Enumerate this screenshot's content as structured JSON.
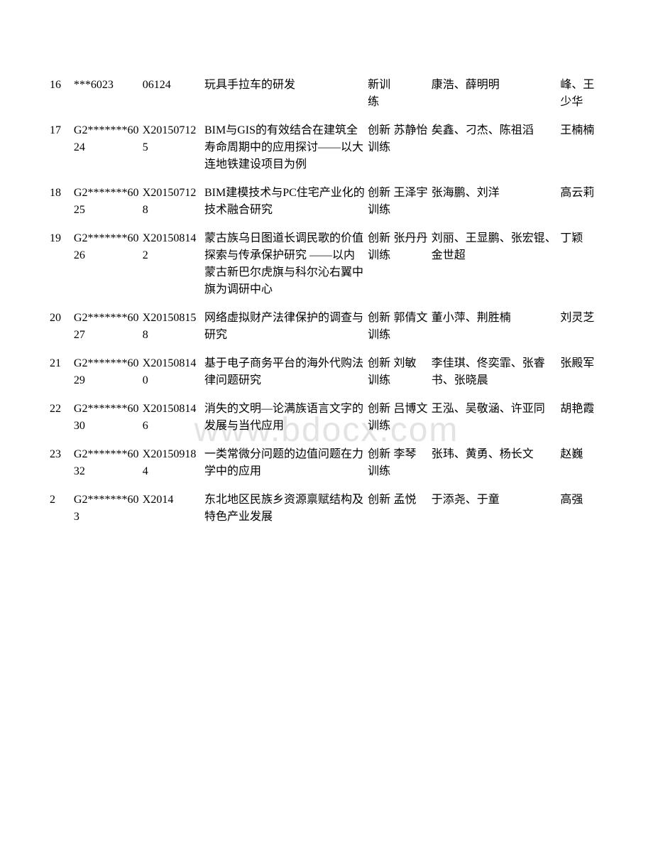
{
  "watermark": "www.bdocx.com",
  "rows": [
    {
      "seq": "16",
      "code1": "***6023",
      "code2": "06124",
      "title": "玩具手拉车的研发",
      "type": "新训练",
      "leader": "",
      "members": "康浩、薛明明",
      "advisor": "峰、王少华"
    },
    {
      "seq": "17",
      "code1": "G2*******6024",
      "code2": "X201507125",
      "title": "BIM与GIS的有效结合在建筑全寿命周期中的应用探讨——以大连地铁建设项目为例",
      "type": "创新训练",
      "leader": "苏静怡",
      "members": "矣鑫、刁杰、陈祖滔",
      "advisor": "王楠楠"
    },
    {
      "seq": "18",
      "code1": "G2*******6025",
      "code2": "X201507128",
      "title": "BIM建模技术与PC住宅产业化的技术融合研究",
      "type": "创新训练",
      "leader": "王泽宇",
      "members": "张海鹏、刘洋",
      "advisor": "高云莉"
    },
    {
      "seq": "19",
      "code1": "G2*******6026",
      "code2": "X201508142",
      "title": "蒙古族乌日图道长调民歌的价值探索与传承保护研究 ——以内蒙古新巴尔虎旗与科尔沁右翼中旗为调研中心",
      "type": "创新训练",
      "leader": "张丹丹",
      "members": "刘丽、王显鹏、张宏锟、金世超",
      "advisor": "丁颖"
    },
    {
      "seq": "20",
      "code1": "G2*******6027",
      "code2": "X201508158",
      "title": "网络虚拟财产法律保护的调查与研究",
      "type": "创新训练",
      "leader": "郭倩文",
      "members": "董小萍、荆胜楠",
      "advisor": "刘灵芝"
    },
    {
      "seq": "21",
      "code1": "G2*******6029",
      "code2": "X201508140",
      "title": "基于电子商务平台的海外代购法律问题研究",
      "type": "创新训练",
      "leader": "刘敏",
      "members": "李佳琪、佟奕霏、张睿书、张晓晨",
      "advisor": "张殿军"
    },
    {
      "seq": "22",
      "code1": "G2*******6030",
      "code2": "X201508146",
      "title": "消失的文明—论满族语言文字的发展与当代应用",
      "type": "创新训练",
      "leader": "吕博文",
      "members": "王泓、吴敬涵、许亚同",
      "advisor": "胡艳霞"
    },
    {
      "seq": "23",
      "code1": "G2*******6032",
      "code2": "X201509184",
      "title": "一类常微分问题的边值问题在力学中的应用",
      "type": "创新训练",
      "leader": "李琴",
      "members": "张玮、黄勇、杨长文",
      "advisor": "赵巍"
    },
    {
      "seq": "2",
      "code1": "G2*******603",
      "code2": "X2014",
      "title": "东北地区民族乡资源禀赋结构及特色产业发展",
      "type": "创新",
      "leader": "孟悦",
      "members": "于添尧、于童",
      "advisor": "高强"
    }
  ]
}
